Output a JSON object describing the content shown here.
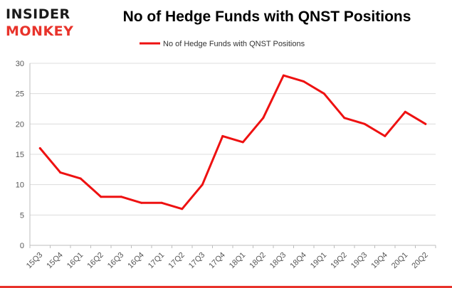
{
  "brand": {
    "line1": "INSIDER",
    "line2": "MONKEY",
    "color_dark": "#1a1a1a",
    "color_red": "#e8332b"
  },
  "chart_data": {
    "type": "line",
    "title": "No of Hedge Funds with QNST Positions",
    "xlabel": "",
    "ylabel": "",
    "categories": [
      "15Q3",
      "15Q4",
      "16Q1",
      "16Q2",
      "16Q3",
      "16Q4",
      "17Q1",
      "17Q2",
      "17Q3",
      "17Q4",
      "18Q1",
      "18Q2",
      "18Q3",
      "18Q4",
      "19Q1",
      "19Q2",
      "19Q3",
      "19Q4",
      "20Q1",
      "20Q2"
    ],
    "series": [
      {
        "name": "No of Hedge Funds with QNST Positions",
        "color": "#ee1111",
        "values": [
          16,
          12,
          11,
          8,
          8,
          7,
          7,
          6,
          10,
          18,
          17,
          21,
          28,
          27,
          25,
          21,
          20,
          18,
          22,
          20
        ]
      }
    ],
    "ylim": [
      0,
      30
    ],
    "yticks": [
      0,
      5,
      10,
      15,
      20,
      25,
      30
    ],
    "grid": true,
    "legend_position": "top-center"
  }
}
